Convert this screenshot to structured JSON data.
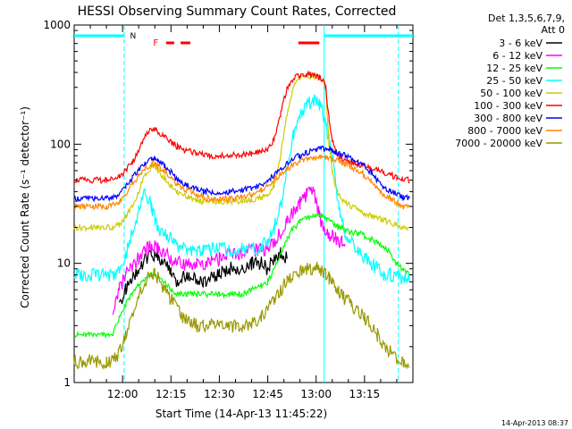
{
  "chart_data": {
    "type": "line",
    "title": "HESSI Observing Summary Count Rates, Corrected",
    "xlabel": "Start Time (14-Apr-13 11:45:22)",
    "ylabel": "Corrected Count Rate (s⁻¹ detector⁻¹)",
    "yscale": "log",
    "ylim": [
      1,
      1000
    ],
    "xlim_minutes_after_1145": [
      0,
      105
    ],
    "x_tick_labels": [
      "12:00",
      "12:15",
      "12:30",
      "12:45",
      "13:00",
      "13:15"
    ],
    "x_tick_minutes": [
      15,
      30,
      45,
      60,
      75,
      90
    ],
    "y_tick_labels": [
      "1",
      "10",
      "100",
      "1000"
    ],
    "y_tick_values": [
      1,
      10,
      100,
      1000
    ],
    "legend_header": [
      "Det 1,3,5,6,7,9,",
      "Att 0"
    ],
    "legend_position": "right",
    "markers": {
      "n_label": "N",
      "f_label": "F",
      "night_color": "#00ffff",
      "flare_color": "#ff0000"
    },
    "times_min": [
      0,
      5,
      10,
      12,
      14,
      16,
      18,
      20,
      22,
      24,
      25,
      26,
      28,
      30,
      32,
      35,
      38,
      40,
      42,
      45,
      48,
      50,
      52,
      55,
      58,
      60,
      62,
      64,
      66,
      68,
      70,
      72,
      74,
      75,
      76,
      77,
      78,
      79,
      80,
      81,
      82,
      83,
      84,
      86,
      88,
      90,
      92,
      94,
      96,
      98,
      100,
      102,
      104
    ],
    "series": [
      {
        "name": "3 - 6 keV",
        "color": "#000000",
        "segment_min": [
          14,
          77
        ],
        "values": [
          null,
          null,
          null,
          null,
          4.5,
          6,
          7.5,
          9,
          11,
          12,
          12,
          11,
          10,
          9,
          7,
          8,
          7,
          7,
          7.5,
          8,
          9,
          9,
          9,
          10,
          10,
          9,
          11,
          12,
          11,
          null,
          null,
          null,
          null,
          null,
          null,
          null,
          null,
          null,
          null,
          null,
          null,
          null,
          null,
          null,
          null,
          null,
          null,
          null,
          null,
          null,
          null,
          null,
          null
        ]
      },
      {
        "name": "6 - 12 keV",
        "color": "#ff00ff",
        "segment_min": [
          12,
          90
        ],
        "values": [
          null,
          null,
          null,
          4,
          6,
          8,
          9.5,
          11,
          13,
          14,
          14,
          13,
          12,
          11,
          10,
          10,
          10,
          10,
          10.5,
          11,
          12,
          12,
          12,
          13,
          13,
          13,
          15,
          18,
          23,
          28,
          32,
          38,
          42,
          33,
          25,
          20,
          18,
          17,
          17,
          16,
          15,
          15,
          14,
          null,
          null,
          null,
          null,
          null,
          null,
          null,
          null,
          null,
          null
        ]
      },
      {
        "name": "12 - 25 keV",
        "color": "#00ff00",
        "segment_min": [
          0,
          105
        ],
        "values": [
          2.5,
          2.5,
          2.5,
          2.5,
          3.5,
          4.5,
          5.5,
          6.5,
          7.5,
          8,
          8,
          7.5,
          7,
          6,
          5.5,
          5.5,
          5.5,
          5.5,
          5.5,
          5.5,
          5.5,
          5.5,
          5.5,
          6,
          6.5,
          7,
          9,
          12,
          16,
          20,
          22,
          24,
          25,
          25,
          26,
          25,
          24,
          23,
          22,
          21,
          20,
          20,
          19,
          18,
          18,
          17,
          16,
          15,
          14,
          12,
          10,
          9,
          8
        ]
      },
      {
        "name": "25 - 50 keV",
        "color": "#00ffff",
        "segment_min": [
          0,
          105
        ],
        "values": [
          8,
          8,
          8,
          8,
          9,
          12,
          18,
          28,
          40,
          30,
          24,
          20,
          18,
          16,
          14,
          13,
          13,
          13,
          13,
          13,
          13,
          13,
          13,
          13,
          14,
          15,
          20,
          30,
          60,
          120,
          180,
          210,
          230,
          230,
          220,
          180,
          140,
          110,
          80,
          50,
          30,
          22,
          18,
          15,
          13,
          11,
          10,
          9,
          8,
          8,
          7.5,
          7.5,
          7.5
        ]
      },
      {
        "name": "50 - 100 keV",
        "color": "#cccc00",
        "segment_min": [
          0,
          105
        ],
        "values": [
          20,
          20,
          20,
          20,
          21,
          25,
          30,
          40,
          55,
          65,
          65,
          60,
          52,
          45,
          40,
          36,
          34,
          33,
          33,
          33,
          33,
          33,
          33,
          34,
          36,
          38,
          45,
          80,
          180,
          300,
          360,
          370,
          370,
          370,
          360,
          340,
          300,
          100,
          60,
          45,
          38,
          34,
          32,
          30,
          28,
          26,
          25,
          24,
          23,
          22,
          21,
          20,
          20
        ]
      },
      {
        "name": "100 - 300 keV",
        "color": "#ff0000",
        "segment_min": [
          0,
          105
        ],
        "values": [
          50,
          50,
          50,
          51,
          53,
          60,
          70,
          90,
          120,
          135,
          133,
          125,
          115,
          105,
          95,
          88,
          84,
          82,
          80,
          80,
          80,
          81,
          82,
          84,
          88,
          92,
          110,
          180,
          300,
          360,
          380,
          390,
          380,
          370,
          360,
          350,
          300,
          160,
          110,
          90,
          80,
          75,
          72,
          70,
          68,
          65,
          62,
          60,
          58,
          55,
          53,
          51,
          50
        ]
      },
      {
        "name": "300 - 800 keV",
        "color": "#0000ff",
        "segment_min": [
          0,
          105
        ],
        "values": [
          35,
          35,
          35,
          36,
          38,
          44,
          52,
          62,
          70,
          75,
          75,
          72,
          66,
          58,
          50,
          45,
          42,
          40,
          40,
          40,
          40,
          40,
          41,
          43,
          46,
          50,
          55,
          62,
          70,
          76,
          80,
          85,
          88,
          90,
          92,
          92,
          91,
          90,
          88,
          86,
          84,
          82,
          80,
          76,
          72,
          66,
          58,
          50,
          44,
          40,
          38,
          36,
          35
        ]
      },
      {
        "name": "800 - 7000 keV",
        "color": "#ff8800",
        "segment_min": [
          0,
          105
        ],
        "values": [
          30,
          30,
          30,
          31,
          33,
          38,
          46,
          55,
          63,
          68,
          68,
          65,
          60,
          53,
          46,
          41,
          38,
          36,
          35,
          35,
          35,
          35,
          36,
          38,
          41,
          45,
          50,
          56,
          62,
          68,
          72,
          75,
          76,
          78,
          78,
          78,
          77,
          76,
          75,
          74,
          72,
          70,
          68,
          64,
          60,
          55,
          48,
          42,
          38,
          35,
          32,
          30,
          29
        ]
      },
      {
        "name": "7000 - 20000 keV",
        "color": "#999900",
        "segment_min": [
          0,
          105
        ],
        "values": [
          1.5,
          1.5,
          1.5,
          1.5,
          1.8,
          2.5,
          3.5,
          5,
          7,
          8,
          8,
          7.5,
          6,
          5,
          4,
          3.2,
          3,
          3,
          3,
          3,
          3,
          3,
          3,
          3.2,
          3.5,
          4,
          5,
          6,
          7,
          8,
          8.5,
          9,
          9,
          9,
          9,
          8.5,
          8,
          7.5,
          7,
          6.5,
          6,
          5.5,
          5,
          4.5,
          4,
          3.5,
          3,
          2.5,
          2,
          1.8,
          1.5,
          1.5,
          1.5
        ]
      }
    ]
  },
  "footer": {
    "timestamp": "14-Apr-2013 08:37"
  }
}
